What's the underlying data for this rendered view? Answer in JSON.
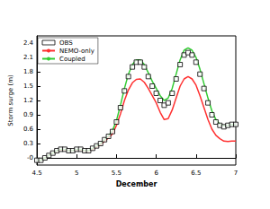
{
  "chart_data": {
    "type": "line",
    "x_label": "December",
    "y_label": "Storm surge (m)",
    "x": [
      4.5,
      4.55,
      4.6,
      4.65,
      4.7,
      4.75,
      4.8,
      4.85,
      4.9,
      4.95,
      5.0,
      5.05,
      5.1,
      5.15,
      5.2,
      5.25,
      5.3,
      5.35,
      5.4,
      5.45,
      5.5,
      5.55,
      5.6,
      5.65,
      5.7,
      5.75,
      5.8,
      5.85,
      5.9,
      5.95,
      6.0,
      6.05,
      6.1,
      6.15,
      6.2,
      6.25,
      6.3,
      6.35,
      6.4,
      6.45,
      6.5,
      6.55,
      6.6,
      6.65,
      6.7,
      6.75,
      6.8,
      6.85,
      6.9,
      6.95,
      7.0
    ],
    "series": [
      {
        "name": "OBS",
        "type": "scatter",
        "marker": "square",
        "color": "#000000",
        "values": [
          -0.05,
          -0.05,
          0.0,
          0.05,
          0.1,
          0.15,
          0.18,
          0.18,
          0.15,
          0.15,
          0.18,
          0.18,
          0.15,
          0.15,
          0.2,
          0.25,
          0.3,
          0.38,
          0.45,
          0.55,
          0.75,
          1.05,
          1.4,
          1.7,
          1.9,
          2.0,
          2.0,
          1.9,
          1.7,
          1.5,
          1.35,
          1.2,
          1.1,
          1.15,
          1.35,
          1.65,
          1.95,
          2.15,
          2.2,
          2.15,
          2.0,
          1.75,
          1.45,
          1.15,
          0.9,
          0.75,
          0.68,
          0.65,
          0.68,
          0.7,
          0.7
        ]
      },
      {
        "name": "NEMO-only",
        "type": "line",
        "color": "#ff3030",
        "values": [
          -0.05,
          -0.05,
          0.0,
          0.05,
          0.1,
          0.14,
          0.17,
          0.17,
          0.15,
          0.15,
          0.17,
          0.17,
          0.14,
          0.14,
          0.18,
          0.23,
          0.28,
          0.35,
          0.42,
          0.5,
          0.68,
          0.92,
          1.2,
          1.42,
          1.57,
          1.64,
          1.65,
          1.58,
          1.45,
          1.3,
          1.15,
          0.95,
          0.8,
          0.82,
          1.0,
          1.25,
          1.5,
          1.65,
          1.7,
          1.65,
          1.52,
          1.3,
          1.05,
          0.8,
          0.6,
          0.47,
          0.4,
          0.35,
          0.34,
          0.35,
          0.35
        ]
      },
      {
        "name": "Coupled",
        "type": "line",
        "color": "#33cc33",
        "values": [
          -0.05,
          -0.05,
          0.0,
          0.05,
          0.1,
          0.15,
          0.18,
          0.18,
          0.15,
          0.15,
          0.18,
          0.18,
          0.15,
          0.15,
          0.2,
          0.25,
          0.3,
          0.38,
          0.46,
          0.57,
          0.78,
          1.1,
          1.45,
          1.75,
          1.95,
          2.05,
          2.05,
          1.95,
          1.78,
          1.6,
          1.45,
          1.3,
          1.2,
          1.25,
          1.45,
          1.75,
          2.05,
          2.25,
          2.3,
          2.25,
          2.1,
          1.85,
          1.55,
          1.25,
          0.98,
          0.8,
          0.7,
          0.67,
          0.68,
          0.7,
          0.7
        ]
      }
    ],
    "xlim": [
      4.5,
      7
    ],
    "xticks": [
      4.5,
      5,
      5.5,
      6,
      6.5,
      7
    ],
    "ylim": [
      -0.15,
      2.55
    ],
    "yticks": [
      {
        "value": 0,
        "label": "-0"
      },
      0.3,
      0.6,
      0.9,
      1.2,
      1.5,
      1.8,
      2.1,
      2.4
    ],
    "grid": false,
    "legend": "upper left"
  }
}
